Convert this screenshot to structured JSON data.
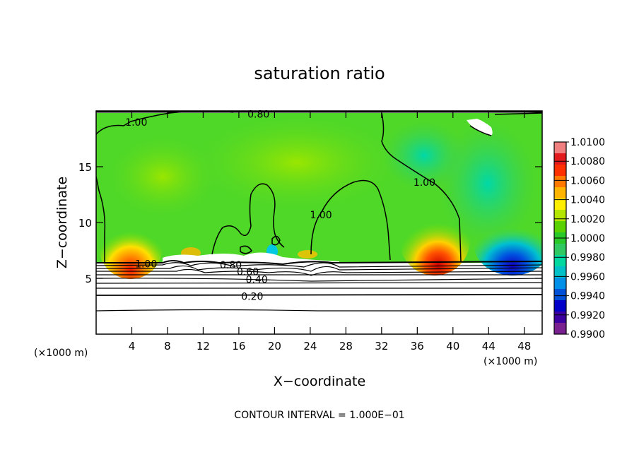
{
  "chart_data": {
    "type": "heatmap",
    "title": "saturation ratio",
    "xlabel": "X−coordinate",
    "ylabel": "Z−coordinate",
    "x_unit_left": "(×1000 m)",
    "x_unit_right": "(×1000 m)",
    "footer": "CONTOUR INTERVAL = 1.000E−01",
    "xlim": [
      0,
      50
    ],
    "ylim": [
      0,
      20
    ],
    "xticks": [
      4,
      8,
      12,
      16,
      20,
      24,
      28,
      32,
      36,
      40,
      44,
      48
    ],
    "xtick_labels": [
      "4",
      "8",
      "12",
      "16",
      "20",
      "24",
      "28",
      "32",
      "36",
      "40",
      "44",
      "48"
    ],
    "yticks": [
      5,
      10,
      15
    ],
    "ytick_labels": [
      "5",
      "10",
      "15"
    ],
    "colorbar": {
      "min": 0.99,
      "max": 1.01,
      "labels": [
        "1.0100",
        "1.0080",
        "1.0060",
        "1.0040",
        "1.0020",
        "1.0000",
        "0.9980",
        "0.9960",
        "0.9940",
        "0.9920",
        "0.9900"
      ],
      "colors": [
        "#f08080",
        "#e31a1c",
        "#ff3000",
        "#ff7800",
        "#ffb400",
        "#ffee00",
        "#b4e600",
        "#5ad200",
        "#28c828",
        "#30c860",
        "#00d8a0",
        "#00c0c8",
        "#0090e8",
        "#0050d8",
        "#0000c8",
        "#3c00a0",
        "#7a2090"
      ]
    },
    "contour_labels": [
      {
        "text": "1.00",
        "x": 4.5,
        "z": 19.0
      },
      {
        "text": "0.80",
        "x": 18.2,
        "z": 19.7
      },
      {
        "text": "1.00",
        "x": 36.8,
        "z": 13.6
      },
      {
        "text": "1.00",
        "x": 25.2,
        "z": 10.7
      },
      {
        "text": "1.00",
        "x": 5.6,
        "z": 6.3
      },
      {
        "text": "0.80",
        "x": 15.1,
        "z": 6.2
      },
      {
        "text": "0.60",
        "x": 17.0,
        "z": 5.6
      },
      {
        "text": "0.40",
        "x": 18.0,
        "z": 4.9
      },
      {
        "text": "0.20",
        "x": 17.5,
        "z": 3.4
      }
    ]
  }
}
